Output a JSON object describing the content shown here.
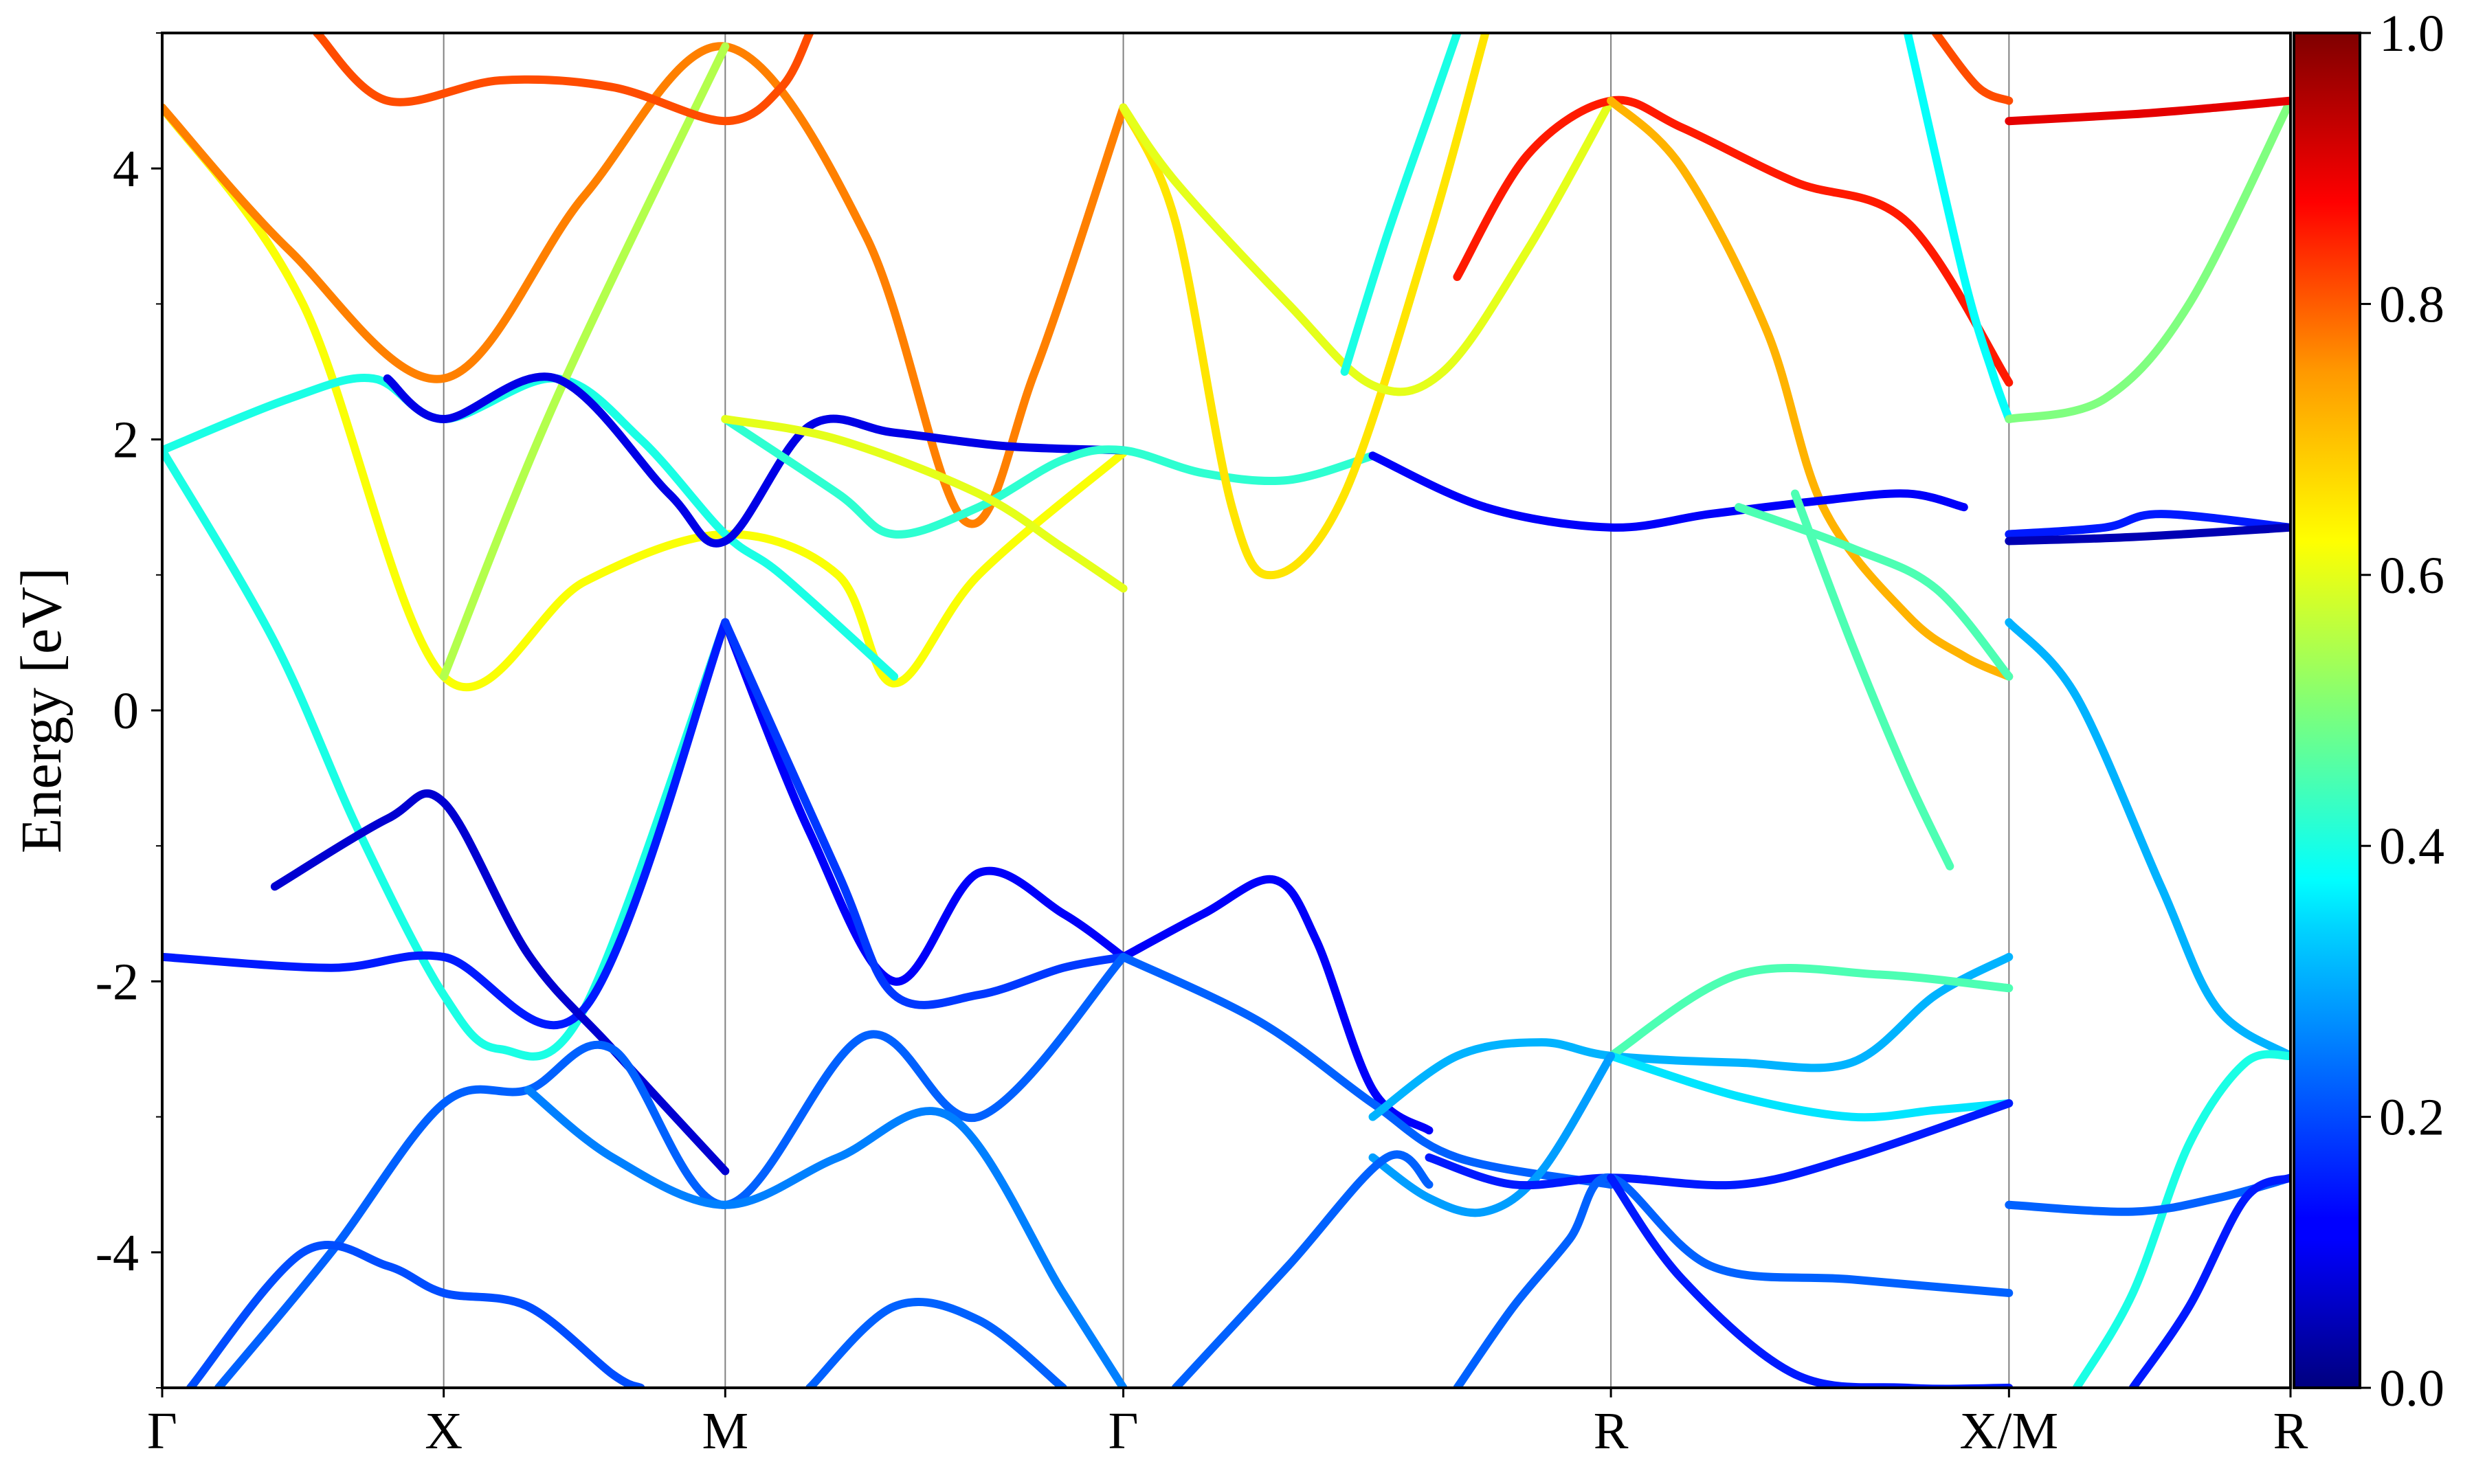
{
  "chart_data": {
    "type": "line",
    "title": "",
    "xlabel": "",
    "ylabel": "Energy [eV]",
    "ylim": [
      -5,
      5
    ],
    "y_ticks": [
      4,
      2,
      0,
      -2,
      -4
    ],
    "y_tick_labels": [
      "4",
      "2",
      "0",
      "-2",
      "-4"
    ],
    "x_ticks": [
      {
        "label": "Γ",
        "x": 0
      },
      {
        "label": "X",
        "x": 1
      },
      {
        "label": "M",
        "x": 2
      },
      {
        "label": "Γ",
        "x": 3.414
      },
      {
        "label": "R",
        "x": 5.146
      },
      {
        "label": "X/M",
        "x": 6.56
      },
      {
        "label": "R",
        "x": 7.56
      }
    ],
    "xlim": [
      0,
      7.56
    ],
    "grid": "vertical lines at high-symmetry points",
    "colorbar": {
      "colormap": "jet",
      "range": [
        0,
        1
      ],
      "ticks": [
        0.0,
        0.2,
        0.4,
        0.6,
        0.8,
        1.0
      ],
      "tick_labels": [
        "0.0",
        "0.2",
        "0.4",
        "0.6",
        "0.8",
        "1.0"
      ]
    },
    "series": [
      {
        "c": 0.62,
        "points": [
          [
            0,
            4.45
          ],
          [
            0.5,
            3.0
          ],
          [
            1,
            0.25
          ],
          [
            1.5,
            0.95
          ],
          [
            2,
            1.3
          ],
          [
            2.4,
            1.0
          ],
          [
            2.6,
            0.2
          ],
          [
            2.9,
            1.0
          ],
          [
            3.414,
            1.9
          ]
        ]
      },
      {
        "c": 0.75,
        "points": [
          [
            0,
            4.45
          ],
          [
            0.45,
            3.4
          ],
          [
            1,
            2.45
          ],
          [
            1.5,
            3.8
          ],
          [
            2,
            4.9
          ],
          [
            2.5,
            3.5
          ],
          [
            2.85,
            1.4
          ],
          [
            3.1,
            2.5
          ],
          [
            3.414,
            4.45
          ]
        ]
      },
      {
        "c": 0.4,
        "points": [
          [
            0,
            1.92
          ],
          [
            0.45,
            2.3
          ],
          [
            0.75,
            2.45
          ],
          [
            1,
            2.15
          ],
          [
            1.4,
            2.45
          ],
          [
            1.7,
            2.0
          ],
          [
            2,
            1.3
          ],
          [
            2.2,
            1.0
          ],
          [
            2.6,
            0.25
          ]
        ]
      },
      {
        "c": 0.4,
        "points": [
          [
            0,
            1.92
          ],
          [
            0.4,
            0.5
          ],
          [
            0.7,
            -0.9
          ],
          [
            1,
            -2.1
          ],
          [
            1.2,
            -2.5
          ],
          [
            1.5,
            -2.2
          ],
          [
            2,
            0.65
          ]
        ]
      },
      {
        "c": 0.55,
        "points": [
          [
            1,
            0.25
          ],
          [
            1.4,
            2.3
          ],
          [
            2,
            4.9
          ]
        ]
      },
      {
        "c": 0.8,
        "points": [
          [
            0.55,
            5.0
          ],
          [
            0.8,
            4.5
          ],
          [
            1.2,
            4.65
          ],
          [
            1.6,
            4.6
          ],
          [
            2,
            4.35
          ],
          [
            2.2,
            4.6
          ],
          [
            2.3,
            5.0
          ]
        ]
      },
      {
        "c": 0.1,
        "points": [
          [
            0.8,
            2.45
          ],
          [
            1,
            2.15
          ],
          [
            1.4,
            2.45
          ],
          [
            1.8,
            1.6
          ],
          [
            2,
            1.25
          ],
          [
            2.3,
            2.1
          ],
          [
            2.6,
            2.05
          ],
          [
            3,
            1.95
          ],
          [
            3.414,
            1.92
          ]
        ]
      },
      {
        "c": 0.42,
        "points": [
          [
            2,
            2.15
          ],
          [
            2.4,
            1.6
          ],
          [
            2.6,
            1.3
          ],
          [
            2.9,
            1.5
          ],
          [
            3.2,
            1.85
          ],
          [
            3.414,
            1.92
          ],
          [
            3.7,
            1.75
          ],
          [
            4.0,
            1.7
          ],
          [
            4.3,
            1.88
          ]
        ]
      },
      {
        "c": 0.6,
        "points": [
          [
            2,
            2.15
          ],
          [
            2.4,
            2.0
          ],
          [
            2.9,
            1.6
          ],
          [
            3.2,
            1.2
          ],
          [
            3.414,
            0.9
          ]
        ]
      },
      {
        "c": 0.65,
        "points": [
          [
            3.414,
            4.45
          ],
          [
            3.6,
            3.6
          ],
          [
            3.8,
            1.5
          ],
          [
            3.95,
            1.0
          ],
          [
            4.2,
            1.6
          ],
          [
            4.5,
            3.5
          ],
          [
            4.7,
            5.0
          ]
        ]
      },
      {
        "c": 0.6,
        "points": [
          [
            3.414,
            4.45
          ],
          [
            3.6,
            3.9
          ],
          [
            4.0,
            3.0
          ],
          [
            4.3,
            2.4
          ],
          [
            4.55,
            2.5
          ],
          [
            4.85,
            3.4
          ],
          [
            5.146,
            4.5
          ]
        ]
      },
      {
        "c": 0.4,
        "points": [
          [
            4.2,
            2.5
          ],
          [
            4.35,
            3.5
          ],
          [
            4.5,
            4.4
          ],
          [
            4.6,
            5.0
          ]
        ]
      },
      {
        "c": 0.85,
        "points": [
          [
            4.6,
            3.2
          ],
          [
            4.85,
            4.1
          ],
          [
            5.146,
            4.5
          ],
          [
            5.4,
            4.3
          ],
          [
            5.8,
            3.9
          ],
          [
            6.2,
            3.6
          ],
          [
            6.56,
            2.42
          ]
        ]
      },
      {
        "c": 0.7,
        "points": [
          [
            5.146,
            4.5
          ],
          [
            5.4,
            4.0
          ],
          [
            5.7,
            2.8
          ],
          [
            5.9,
            1.5
          ],
          [
            6.2,
            0.7
          ],
          [
            6.4,
            0.4
          ],
          [
            6.56,
            0.25
          ]
        ]
      },
      {
        "c": 0.12,
        "points": [
          [
            4.3,
            1.88
          ],
          [
            4.7,
            1.5
          ],
          [
            5.146,
            1.35
          ],
          [
            5.5,
            1.45
          ],
          [
            5.9,
            1.55
          ],
          [
            6.2,
            1.6
          ],
          [
            6.4,
            1.5
          ]
        ]
      },
      {
        "c": 0.45,
        "points": [
          [
            5.6,
            1.5
          ],
          [
            6.0,
            1.2
          ],
          [
            6.3,
            0.9
          ],
          [
            6.56,
            0.25
          ]
        ]
      },
      {
        "c": 0.38,
        "points": [
          [
            6.2,
            5.0
          ],
          [
            6.4,
            3.2
          ],
          [
            6.5,
            2.5
          ],
          [
            6.56,
            2.15
          ]
        ]
      },
      {
        "c": 0.8,
        "points": [
          [
            6.3,
            5.0
          ],
          [
            6.45,
            4.6
          ],
          [
            6.56,
            4.5
          ]
        ]
      },
      {
        "c": 0.45,
        "points": [
          [
            5.8,
            1.6
          ],
          [
            6.0,
            0.5
          ],
          [
            6.2,
            -0.5
          ],
          [
            6.35,
            -1.15
          ]
        ]
      },
      {
        "c": 0.15,
        "points": [
          [
            0,
            -1.82
          ],
          [
            0.6,
            -1.9
          ],
          [
            1,
            -1.82
          ],
          [
            1.5,
            -2.2
          ],
          [
            2,
            0.65
          ]
        ]
      },
      {
        "c": 0.08,
        "points": [
          [
            0.4,
            -1.3
          ],
          [
            0.8,
            -0.8
          ],
          [
            1,
            -0.68
          ],
          [
            1.3,
            -1.8
          ],
          [
            1.6,
            -2.5
          ],
          [
            2,
            -3.4
          ]
        ]
      },
      {
        "c": 0.12,
        "points": [
          [
            2,
            0.65
          ],
          [
            2.3,
            -0.9
          ],
          [
            2.6,
            -2.0
          ],
          [
            2.9,
            -1.2
          ],
          [
            3.2,
            -1.5
          ],
          [
            3.414,
            -1.82
          ]
        ]
      },
      {
        "c": 0.18,
        "points": [
          [
            2,
            0.65
          ],
          [
            2.4,
            -1.2
          ],
          [
            2.6,
            -2.1
          ],
          [
            2.9,
            -2.1
          ],
          [
            3.2,
            -1.9
          ],
          [
            3.414,
            -1.82
          ]
        ]
      },
      {
        "c": 0.12,
        "points": [
          [
            3.414,
            -1.82
          ],
          [
            3.7,
            -1.5
          ],
          [
            3.95,
            -1.25
          ],
          [
            4.1,
            -1.7
          ],
          [
            4.3,
            -2.8
          ],
          [
            4.5,
            -3.1
          ]
        ]
      },
      {
        "c": 0.22,
        "points": [
          [
            3.414,
            -1.82
          ],
          [
            3.9,
            -2.3
          ],
          [
            4.3,
            -2.9
          ],
          [
            4.6,
            -3.3
          ],
          [
            5.146,
            -3.5
          ]
        ]
      },
      {
        "c": 0.3,
        "points": [
          [
            4.3,
            -3.0
          ],
          [
            4.6,
            -2.55
          ],
          [
            4.9,
            -2.45
          ],
          [
            5.146,
            -2.55
          ],
          [
            5.6,
            -2.6
          ],
          [
            6.0,
            -2.6
          ],
          [
            6.3,
            -2.1
          ],
          [
            6.56,
            -1.82
          ]
        ]
      },
      {
        "c": 0.45,
        "points": [
          [
            5.146,
            -2.55
          ],
          [
            5.6,
            -1.95
          ],
          [
            6.1,
            -1.95
          ],
          [
            6.56,
            -2.05
          ]
        ]
      },
      {
        "c": 0.35,
        "points": [
          [
            5.146,
            -2.55
          ],
          [
            5.6,
            -2.85
          ],
          [
            6.0,
            -3.0
          ],
          [
            6.3,
            -2.95
          ],
          [
            6.56,
            -2.9
          ]
        ]
      },
      {
        "c": 0.28,
        "points": [
          [
            4.3,
            -3.3
          ],
          [
            4.5,
            -3.6
          ],
          [
            4.7,
            -3.7
          ],
          [
            4.9,
            -3.4
          ],
          [
            5.146,
            -2.55
          ]
        ]
      },
      {
        "c": 0.15,
        "points": [
          [
            4.5,
            -3.3
          ],
          [
            4.8,
            -3.5
          ],
          [
            5.146,
            -3.45
          ],
          [
            5.6,
            -3.5
          ],
          [
            6.0,
            -3.3
          ],
          [
            6.56,
            -2.9
          ]
        ]
      },
      {
        "c": 0.22,
        "points": [
          [
            0.2,
            -5.0
          ],
          [
            0.6,
            -4.0
          ],
          [
            1,
            -2.9
          ],
          [
            1.3,
            -2.8
          ],
          [
            1.6,
            -2.5
          ],
          [
            2,
            -3.65
          ],
          [
            2.5,
            -2.4
          ],
          [
            2.9,
            -3.0
          ],
          [
            3.414,
            -1.82
          ]
        ]
      },
      {
        "c": 0.25,
        "points": [
          [
            1.3,
            -2.8
          ],
          [
            1.6,
            -3.3
          ],
          [
            2,
            -3.65
          ],
          [
            2.4,
            -3.3
          ],
          [
            2.8,
            -3.0
          ],
          [
            3.2,
            -4.3
          ],
          [
            3.414,
            -5.0
          ]
        ]
      },
      {
        "c": 0.2,
        "points": [
          [
            0.1,
            -5.0
          ],
          [
            0.5,
            -4.0
          ],
          [
            0.8,
            -4.1
          ],
          [
            1,
            -4.3
          ],
          [
            1.3,
            -4.4
          ],
          [
            1.6,
            -4.9
          ],
          [
            1.7,
            -5.0
          ]
        ]
      },
      {
        "c": 0.22,
        "points": [
          [
            2.3,
            -5.0
          ],
          [
            2.6,
            -4.4
          ],
          [
            2.9,
            -4.5
          ],
          [
            3.2,
            -5.0
          ]
        ]
      },
      {
        "c": 0.22,
        "points": [
          [
            3.6,
            -5.0
          ],
          [
            4.0,
            -4.1
          ],
          [
            4.35,
            -3.3
          ],
          [
            4.5,
            -3.5
          ]
        ]
      },
      {
        "c": 0.22,
        "points": [
          [
            4.6,
            -5.0
          ],
          [
            4.8,
            -4.4
          ],
          [
            5.0,
            -3.9
          ],
          [
            5.146,
            -3.45
          ],
          [
            5.5,
            -4.1
          ],
          [
            6.0,
            -4.2
          ],
          [
            6.56,
            -4.3
          ]
        ]
      },
      {
        "c": 0.15,
        "points": [
          [
            5.146,
            -3.45
          ],
          [
            5.4,
            -4.2
          ],
          [
            5.8,
            -4.9
          ],
          [
            6.2,
            -5.0
          ],
          [
            6.56,
            -5.0
          ]
        ]
      },
      {
        "c": 0.3,
        "points": [
          [
            6.56,
            0.65
          ],
          [
            6.8,
            0.1
          ],
          [
            7.1,
            -1.3
          ],
          [
            7.3,
            -2.2
          ],
          [
            7.56,
            -2.55
          ]
        ]
      },
      {
        "c": 0.5,
        "points": [
          [
            6.56,
            2.15
          ],
          [
            6.9,
            2.3
          ],
          [
            7.2,
            3.0
          ],
          [
            7.56,
            4.5
          ]
        ]
      },
      {
        "c": 0.9,
        "points": [
          [
            6.56,
            4.35
          ],
          [
            7.0,
            4.4
          ],
          [
            7.3,
            4.45
          ],
          [
            7.56,
            4.5
          ]
        ]
      },
      {
        "c": 0.15,
        "points": [
          [
            6.56,
            1.3
          ],
          [
            6.9,
            1.35
          ],
          [
            7.1,
            1.45
          ],
          [
            7.56,
            1.35
          ]
        ]
      },
      {
        "c": 0.05,
        "points": [
          [
            6.56,
            1.25
          ],
          [
            7.0,
            1.28
          ],
          [
            7.56,
            1.35
          ]
        ]
      },
      {
        "c": 0.4,
        "points": [
          [
            6.8,
            -5.0
          ],
          [
            7.0,
            -4.3
          ],
          [
            7.2,
            -3.2
          ],
          [
            7.4,
            -2.6
          ],
          [
            7.56,
            -2.55
          ]
        ]
      },
      {
        "c": 0.22,
        "points": [
          [
            6.56,
            -3.65
          ],
          [
            7.0,
            -3.7
          ],
          [
            7.3,
            -3.6
          ],
          [
            7.56,
            -3.45
          ]
        ]
      },
      {
        "c": 0.15,
        "points": [
          [
            7.0,
            -5.0
          ],
          [
            7.2,
            -4.4
          ],
          [
            7.4,
            -3.6
          ],
          [
            7.56,
            -3.45
          ]
        ]
      }
    ]
  }
}
